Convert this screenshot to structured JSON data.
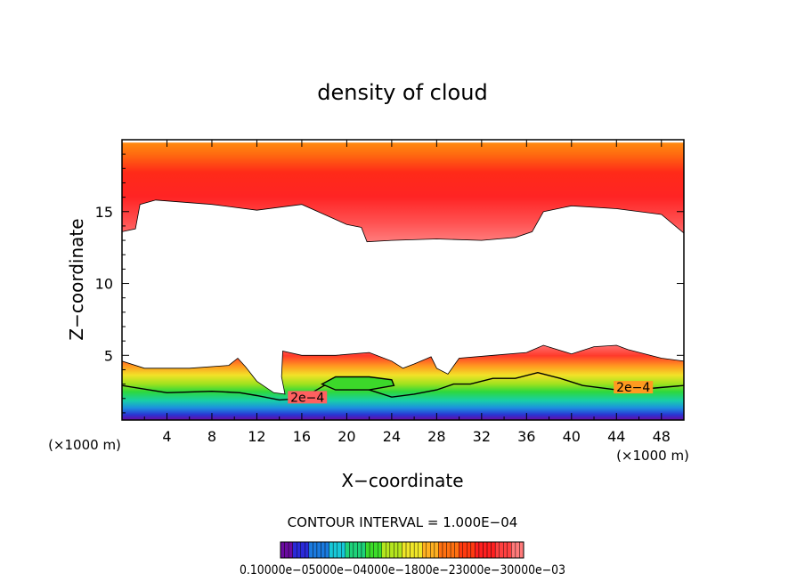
{
  "chart_data": {
    "type": "heatmap",
    "title": "density of cloud",
    "xlabel": "X−coordinate",
    "ylabel": "Z−coordinate",
    "x_unit_left": "(×1000 m)",
    "x_unit_right": "(×1000 m)",
    "xlim": [
      0,
      50
    ],
    "ylim": [
      0.5,
      20
    ],
    "x_ticks": [
      4,
      8,
      12,
      16,
      20,
      24,
      28,
      32,
      36,
      40,
      44,
      48
    ],
    "x_tick_labels": [
      "4",
      "8",
      "12",
      "16",
      "20",
      "24",
      "28",
      "32",
      "36",
      "40",
      "44",
      "48"
    ],
    "y_ticks": [
      5,
      10,
      15
    ],
    "y_tick_labels": [
      "5",
      "10",
      "15"
    ],
    "contour_interval_text": "CONTOUR INTERVAL = 1.000E−04",
    "contour_labels": [
      {
        "text": "2e−4",
        "x": 45.5,
        "z": 2.6
      },
      {
        "text": "2e−4",
        "x": 16.5,
        "z": 1.9
      }
    ],
    "colorbar_text": "0.10000e−05000e−04000e−1800e−23000e−30000e−03",
    "colorbar_colors": [
      "#6a0aa0",
      "#2a2ad8",
      "#1a7adf",
      "#17c8d8",
      "#1ed27a",
      "#3cdc2a",
      "#b4e61e",
      "#f0e628",
      "#ffb020",
      "#ff7010",
      "#ff3a10",
      "#ff1f1f",
      "#ff4040",
      "#ff7a7a"
    ],
    "upper_layer": {
      "top_z": 19.8,
      "bottom_boundary": [
        [
          0,
          13.6
        ],
        [
          1.2,
          13.8
        ],
        [
          1.6,
          15.5
        ],
        [
          3,
          15.8
        ],
        [
          8,
          15.5
        ],
        [
          12,
          15.1
        ],
        [
          16,
          15.5
        ],
        [
          18,
          14.8
        ],
        [
          20,
          14.1
        ],
        [
          21.3,
          13.9
        ],
        [
          21.8,
          12.9
        ],
        [
          24,
          13.0
        ],
        [
          28,
          13.1
        ],
        [
          32,
          13.0
        ],
        [
          35,
          13.2
        ],
        [
          36.5,
          13.6
        ],
        [
          37.5,
          15.0
        ],
        [
          40,
          15.4
        ],
        [
          44,
          15.2
        ],
        [
          48,
          14.8
        ],
        [
          50,
          13.5
        ]
      ]
    },
    "lower_layer": {
      "top_boundary": [
        [
          0,
          4.6
        ],
        [
          2,
          4.1
        ],
        [
          6,
          4.1
        ],
        [
          9.5,
          4.3
        ],
        [
          10.3,
          4.8
        ],
        [
          11,
          4.2
        ],
        [
          12,
          3.2
        ],
        [
          13.5,
          2.4
        ],
        [
          14.5,
          2.3
        ],
        [
          14.2,
          3.5
        ],
        [
          14.3,
          5.3
        ],
        [
          16,
          5.0
        ],
        [
          19,
          5.0
        ],
        [
          22,
          5.2
        ],
        [
          24,
          4.6
        ],
        [
          25,
          4.1
        ],
        [
          26,
          4.4
        ],
        [
          27.5,
          4.9
        ],
        [
          28,
          4.1
        ],
        [
          29,
          3.7
        ],
        [
          30,
          4.8
        ],
        [
          33,
          5.0
        ],
        [
          36,
          5.2
        ],
        [
          37.5,
          5.7
        ],
        [
          40,
          5.1
        ],
        [
          42,
          5.6
        ],
        [
          44,
          5.7
        ],
        [
          45,
          5.4
        ],
        [
          48,
          4.8
        ],
        [
          50,
          4.6
        ]
      ],
      "bottom_z": 0.5
    }
  }
}
